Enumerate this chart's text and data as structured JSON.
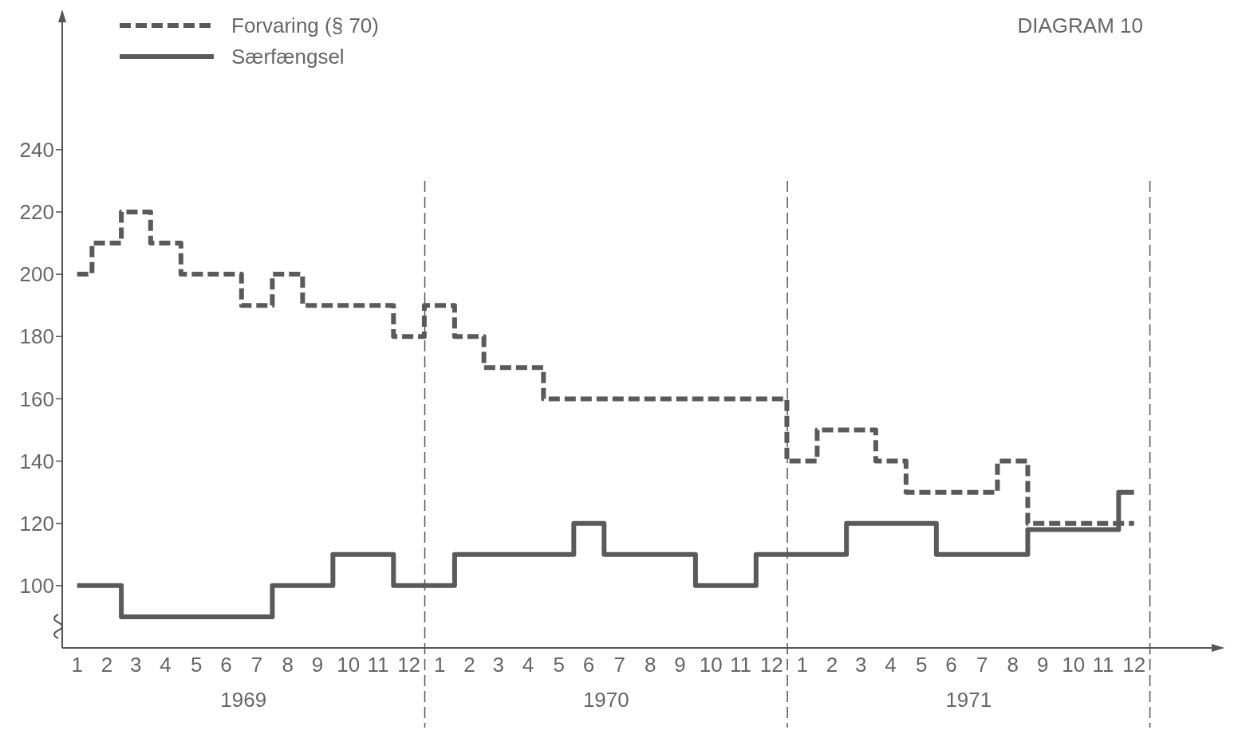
{
  "chart_data": {
    "type": "step",
    "title": "DIAGRAM 10",
    "x": [
      "1969-01-16",
      "1969-02-15",
      "1969-03-16",
      "1969-04-15",
      "1969-05-16",
      "1969-06-15",
      "1969-07-16",
      "1969-08-16",
      "1969-09-15",
      "1969-10-16",
      "1969-11-15",
      "1969-12-16",
      "1970-01-16",
      "1970-02-15",
      "1970-03-16",
      "1970-04-15",
      "1970-05-16",
      "1970-06-15",
      "1970-07-16",
      "1970-08-16",
      "1970-09-15",
      "1970-10-16",
      "1970-11-15",
      "1970-12-16",
      "1971-01-16",
      "1971-02-15",
      "1971-03-16",
      "1971-04-15",
      "1971-05-16",
      "1971-06-15",
      "1971-07-16",
      "1971-08-16",
      "1971-09-15",
      "1971-10-16",
      "1971-11-15",
      "1971-12-16"
    ],
    "series": [
      {
        "name": "Forvaring (§ 70)",
        "color": "#5a5a5a",
        "line_style": "dashed",
        "values": [
          200,
          210,
          220,
          210,
          200,
          200,
          190,
          200,
          190,
          190,
          190,
          180,
          190,
          180,
          170,
          170,
          160,
          160,
          160,
          160,
          160,
          160,
          160,
          160,
          140,
          150,
          150,
          140,
          130,
          130,
          130,
          140,
          120,
          120,
          120,
          120
        ]
      },
      {
        "name": "Særfængsel",
        "color": "#5a5a5a",
        "line_style": "solid",
        "values": [
          100,
          100,
          90,
          90,
          90,
          90,
          90,
          100,
          100,
          110,
          110,
          100,
          100,
          110,
          110,
          110,
          110,
          120,
          110,
          110,
          110,
          100,
          100,
          110,
          110,
          110,
          120,
          120,
          120,
          110,
          110,
          110,
          118,
          118,
          118,
          130
        ]
      }
    ],
    "xlim": [
      "1969-01-01",
      "1972-03-16"
    ],
    "xticks": [
      {
        "value": "1969-01-16",
        "label": "1"
      },
      {
        "value": "1969-02-15",
        "label": "2"
      },
      {
        "value": "1969-03-16",
        "label": "3"
      },
      {
        "value": "1969-04-15",
        "label": "4"
      },
      {
        "value": "1969-05-16",
        "label": "5"
      },
      {
        "value": "1969-06-15",
        "label": "6"
      },
      {
        "value": "1969-07-16",
        "label": "7"
      },
      {
        "value": "1969-08-16",
        "label": "8"
      },
      {
        "value": "1969-09-15",
        "label": "9"
      },
      {
        "value": "1969-10-16",
        "label": "10"
      },
      {
        "value": "1969-11-15",
        "label": "11"
      },
      {
        "value": "1969-12-16",
        "label": "12"
      },
      {
        "value": "1970-01-16",
        "label": "1"
      },
      {
        "value": "1970-02-15",
        "label": "2"
      },
      {
        "value": "1970-03-16",
        "label": "3"
      },
      {
        "value": "1970-04-15",
        "label": "4"
      },
      {
        "value": "1970-05-16",
        "label": "5"
      },
      {
        "value": "1970-06-15",
        "label": "6"
      },
      {
        "value": "1970-07-16",
        "label": "7"
      },
      {
        "value": "1970-08-16",
        "label": "8"
      },
      {
        "value": "1970-09-15",
        "label": "9"
      },
      {
        "value": "1970-10-16",
        "label": "10"
      },
      {
        "value": "1970-11-15",
        "label": "11"
      },
      {
        "value": "1970-12-16",
        "label": "12"
      },
      {
        "value": "1971-01-16",
        "label": "1"
      },
      {
        "value": "1971-02-15",
        "label": "2"
      },
      {
        "value": "1971-03-16",
        "label": "3"
      },
      {
        "value": "1971-04-15",
        "label": "4"
      },
      {
        "value": "1971-05-16",
        "label": "5"
      },
      {
        "value": "1971-06-15",
        "label": "6"
      },
      {
        "value": "1971-07-16",
        "label": "7"
      },
      {
        "value": "1971-08-16",
        "label": "8"
      },
      {
        "value": "1971-09-15",
        "label": "9"
      },
      {
        "value": "1971-10-16",
        "label": "10"
      },
      {
        "value": "1971-11-15",
        "label": "11"
      },
      {
        "value": "1971-12-16",
        "label": "12"
      }
    ],
    "ylim": [
      80,
      285
    ],
    "yticks": [
      100,
      120,
      140,
      160,
      180,
      200,
      220,
      240
    ],
    "ref_lines": [
      {
        "axis": "x",
        "value": "1970-01-01",
        "line_style": "dashed"
      },
      {
        "axis": "x",
        "value": "1971-01-01",
        "line_style": "dashed"
      },
      {
        "axis": "x",
        "value": "1972-01-01",
        "line_style": "dashed"
      }
    ],
    "annotations": [
      "1969",
      "1970",
      "1971"
    ],
    "legend": "top left",
    "grid": false
  }
}
